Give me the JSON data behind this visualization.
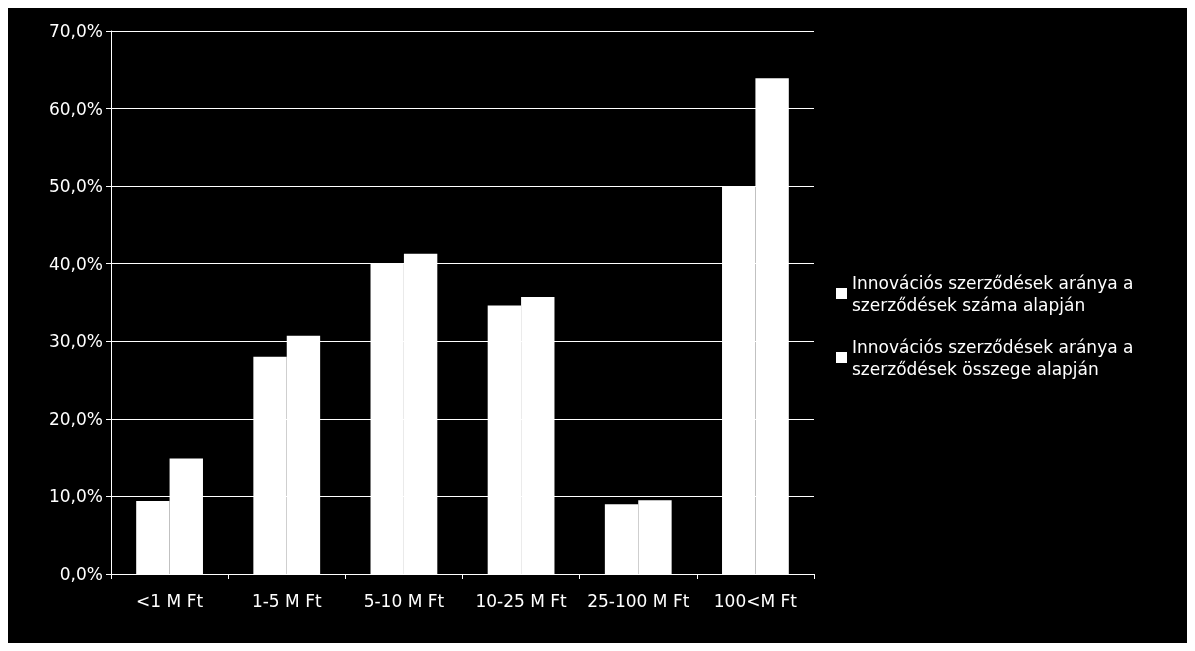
{
  "chart_data": {
    "type": "bar",
    "categories": [
      "<1 M Ft",
      "1-5 M Ft",
      "5-10 M Ft",
      "10-25 M Ft",
      "25-100 M Ft",
      "100<M Ft"
    ],
    "series": [
      {
        "name": "Innovációs szerződések aránya a szerződések száma alapján",
        "color": "#ffffff",
        "values": [
          9.4,
          28.0,
          40.0,
          34.6,
          9.0,
          50.0
        ]
      },
      {
        "name": "Innovációs szerződések aránya a szerződések összege alapján",
        "color": "#ffffff",
        "values": [
          14.9,
          30.7,
          41.3,
          35.7,
          9.5,
          63.9
        ]
      }
    ],
    "ylim": [
      0,
      70
    ],
    "yticks": [
      {
        "value": 0,
        "label": "0,0%"
      },
      {
        "value": 10,
        "label": "10,0%"
      },
      {
        "value": 20,
        "label": "20,0%"
      },
      {
        "value": 30,
        "label": "30,0%"
      },
      {
        "value": 40,
        "label": "40,0%"
      },
      {
        "value": 50,
        "label": "50,0%"
      },
      {
        "value": 60,
        "label": "60,0%"
      },
      {
        "value": 70,
        "label": "70,0%"
      }
    ],
    "grid": "y",
    "legend": "right"
  }
}
